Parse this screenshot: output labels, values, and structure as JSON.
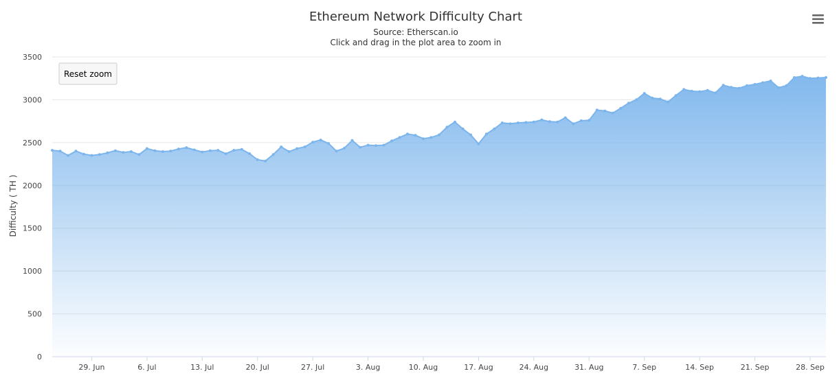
{
  "chart_data": {
    "type": "area",
    "title": "Ethereum Network Difficulty Chart",
    "subtitle": "Source: Etherscan.io",
    "subtitle2": "Click and drag in the plot area to zoom in",
    "ylabel": "Difficulty ( TH )",
    "xlabel": "",
    "ylim": [
      0,
      3500
    ],
    "yticks": [
      0,
      500,
      1000,
      1500,
      2000,
      2500,
      3000,
      3500
    ],
    "x_start": "2017-06-24",
    "x_end": "2017-09-30",
    "xticks": [
      {
        "date": "2017-06-29",
        "label": "29. Jun"
      },
      {
        "date": "2017-07-06",
        "label": "6. Jul"
      },
      {
        "date": "2017-07-13",
        "label": "13. Jul"
      },
      {
        "date": "2017-07-20",
        "label": "20. Jul"
      },
      {
        "date": "2017-07-27",
        "label": "27. Jul"
      },
      {
        "date": "2017-08-03",
        "label": "3. Aug"
      },
      {
        "date": "2017-08-10",
        "label": "10. Aug"
      },
      {
        "date": "2017-08-17",
        "label": "17. Aug"
      },
      {
        "date": "2017-08-24",
        "label": "24. Aug"
      },
      {
        "date": "2017-08-31",
        "label": "31. Aug"
      },
      {
        "date": "2017-09-07",
        "label": "7. Sep"
      },
      {
        "date": "2017-09-14",
        "label": "14. Sep"
      },
      {
        "date": "2017-09-21",
        "label": "21. Sep"
      },
      {
        "date": "2017-09-28",
        "label": "28. Sep"
      }
    ],
    "grid": true,
    "legend": "none",
    "series": [
      {
        "color": "#7cb5ec",
        "data": [
          [
            "2017-06-24",
            2410
          ],
          [
            "2017-06-25",
            2400
          ],
          [
            "2017-06-26",
            2350
          ],
          [
            "2017-06-27",
            2400
          ],
          [
            "2017-06-28",
            2365
          ],
          [
            "2017-06-29",
            2350
          ],
          [
            "2017-06-30",
            2360
          ],
          [
            "2017-07-01",
            2380
          ],
          [
            "2017-07-02",
            2405
          ],
          [
            "2017-07-03",
            2385
          ],
          [
            "2017-07-04",
            2395
          ],
          [
            "2017-07-05",
            2360
          ],
          [
            "2017-07-06",
            2430
          ],
          [
            "2017-07-07",
            2405
          ],
          [
            "2017-07-08",
            2395
          ],
          [
            "2017-07-09",
            2400
          ],
          [
            "2017-07-10",
            2425
          ],
          [
            "2017-07-11",
            2440
          ],
          [
            "2017-07-12",
            2415
          ],
          [
            "2017-07-13",
            2390
          ],
          [
            "2017-07-14",
            2405
          ],
          [
            "2017-07-15",
            2410
          ],
          [
            "2017-07-16",
            2370
          ],
          [
            "2017-07-17",
            2410
          ],
          [
            "2017-07-18",
            2420
          ],
          [
            "2017-07-19",
            2370
          ],
          [
            "2017-07-20",
            2300
          ],
          [
            "2017-07-21",
            2285
          ],
          [
            "2017-07-22",
            2360
          ],
          [
            "2017-07-23",
            2450
          ],
          [
            "2017-07-24",
            2395
          ],
          [
            "2017-07-25",
            2430
          ],
          [
            "2017-07-26",
            2450
          ],
          [
            "2017-07-27",
            2505
          ],
          [
            "2017-07-28",
            2530
          ],
          [
            "2017-07-29",
            2490
          ],
          [
            "2017-07-30",
            2400
          ],
          [
            "2017-07-31",
            2435
          ],
          [
            "2017-08-01",
            2525
          ],
          [
            "2017-08-02",
            2445
          ],
          [
            "2017-08-03",
            2470
          ],
          [
            "2017-08-04",
            2465
          ],
          [
            "2017-08-05",
            2470
          ],
          [
            "2017-08-06",
            2520
          ],
          [
            "2017-08-07",
            2560
          ],
          [
            "2017-08-08",
            2600
          ],
          [
            "2017-08-09",
            2585
          ],
          [
            "2017-08-10",
            2545
          ],
          [
            "2017-08-11",
            2560
          ],
          [
            "2017-08-12",
            2590
          ],
          [
            "2017-08-13",
            2680
          ],
          [
            "2017-08-14",
            2740
          ],
          [
            "2017-08-15",
            2660
          ],
          [
            "2017-08-16",
            2590
          ],
          [
            "2017-08-17",
            2485
          ],
          [
            "2017-08-18",
            2600
          ],
          [
            "2017-08-19",
            2660
          ],
          [
            "2017-08-20",
            2730
          ],
          [
            "2017-08-21",
            2720
          ],
          [
            "2017-08-22",
            2730
          ],
          [
            "2017-08-23",
            2735
          ],
          [
            "2017-08-24",
            2740
          ],
          [
            "2017-08-25",
            2765
          ],
          [
            "2017-08-26",
            2745
          ],
          [
            "2017-08-27",
            2740
          ],
          [
            "2017-08-28",
            2790
          ],
          [
            "2017-08-29",
            2720
          ],
          [
            "2017-08-30",
            2755
          ],
          [
            "2017-08-31",
            2760
          ],
          [
            "2017-09-01",
            2880
          ],
          [
            "2017-09-02",
            2870
          ],
          [
            "2017-09-03",
            2845
          ],
          [
            "2017-09-04",
            2900
          ],
          [
            "2017-09-05",
            2960
          ],
          [
            "2017-09-06",
            3000
          ],
          [
            "2017-09-07",
            3075
          ],
          [
            "2017-09-08",
            3020
          ],
          [
            "2017-09-09",
            3010
          ],
          [
            "2017-09-10",
            2975
          ],
          [
            "2017-09-11",
            3050
          ],
          [
            "2017-09-12",
            3120
          ],
          [
            "2017-09-13",
            3100
          ],
          [
            "2017-09-14",
            3095
          ],
          [
            "2017-09-15",
            3110
          ],
          [
            "2017-09-16",
            3080
          ],
          [
            "2017-09-17",
            3170
          ],
          [
            "2017-09-18",
            3145
          ],
          [
            "2017-09-19",
            3135
          ],
          [
            "2017-09-20",
            3165
          ],
          [
            "2017-09-21",
            3180
          ],
          [
            "2017-09-22",
            3200
          ],
          [
            "2017-09-23",
            3220
          ],
          [
            "2017-09-24",
            3140
          ],
          [
            "2017-09-25",
            3165
          ],
          [
            "2017-09-26",
            3260
          ],
          [
            "2017-09-27",
            3275
          ],
          [
            "2017-09-28",
            3250
          ],
          [
            "2017-09-29",
            3255
          ],
          [
            "2017-09-30",
            3260
          ]
        ]
      }
    ]
  },
  "controls": {
    "reset_zoom_label": "Reset zoom",
    "menu_icon": "hamburger-menu-icon"
  }
}
